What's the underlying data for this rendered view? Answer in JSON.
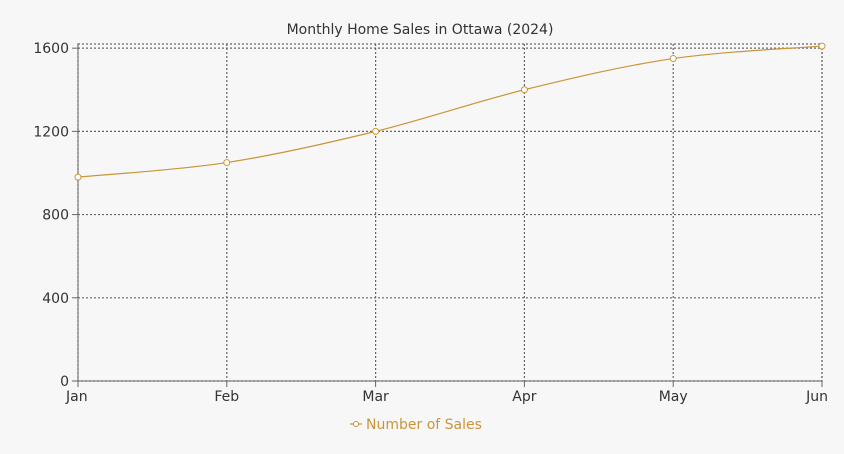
{
  "chart_data": {
    "type": "line",
    "title": "Monthly Home Sales in Ottawa (2024)",
    "categories": [
      "Jan",
      "Feb",
      "Mar",
      "Apr",
      "May",
      "Jun"
    ],
    "series": [
      {
        "name": "Number of Sales",
        "values": [
          980,
          1050,
          1200,
          1400,
          1550,
          1610
        ],
        "color": "#c9953a"
      }
    ],
    "yticks": [
      0,
      400,
      800,
      1200,
      1600
    ],
    "ylim": [
      0,
      1620
    ],
    "grid": true,
    "legend_position": "bottom-center"
  }
}
